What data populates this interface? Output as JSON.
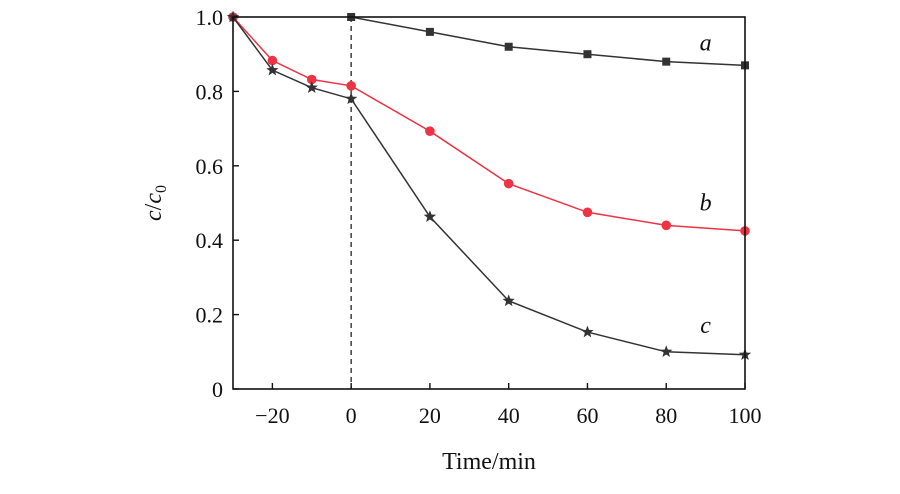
{
  "chart_data": {
    "type": "line",
    "title": "",
    "xlabel": "Time/min",
    "ylabel": {
      "c": "c",
      "slash": "/",
      "c0_base": "c",
      "c0_sub": "0"
    },
    "xlim": [
      -30,
      100
    ],
    "ylim": [
      0,
      1.0
    ],
    "x_ticks": [
      -20,
      0,
      20,
      40,
      60,
      80,
      100
    ],
    "x_tick_labels": [
      "−20",
      "0",
      "20",
      "40",
      "60",
      "80",
      "100"
    ],
    "y_ticks": [
      0,
      0.2,
      0.4,
      0.6,
      0.8,
      1.0
    ],
    "y_tick_labels": [
      "0",
      "0.2",
      "0.4",
      "0.6",
      "0.8",
      "1.0"
    ],
    "vertical_reference_line": {
      "x": 0,
      "style": "dashed"
    },
    "series": [
      {
        "name": "a",
        "marker": "square",
        "color": "#333333",
        "points": [
          {
            "x": 0,
            "y": 1.0
          },
          {
            "x": 20,
            "y": 0.96
          },
          {
            "x": 40,
            "y": 0.92
          },
          {
            "x": 60,
            "y": 0.9
          },
          {
            "x": 80,
            "y": 0.88
          },
          {
            "x": 100,
            "y": 0.87
          }
        ]
      },
      {
        "name": "b",
        "marker": "circle",
        "color": "#ee3344",
        "points": [
          {
            "x": -30,
            "y": 1.0
          },
          {
            "x": -20,
            "y": 0.883
          },
          {
            "x": -10,
            "y": 0.832
          },
          {
            "x": 0,
            "y": 0.815
          },
          {
            "x": 20,
            "y": 0.693
          },
          {
            "x": 40,
            "y": 0.552
          },
          {
            "x": 60,
            "y": 0.475
          },
          {
            "x": 80,
            "y": 0.44
          },
          {
            "x": 100,
            "y": 0.425
          }
        ]
      },
      {
        "name": "c",
        "marker": "star",
        "color": "#333333",
        "points": [
          {
            "x": -30,
            "y": 1.0
          },
          {
            "x": -20,
            "y": 0.857
          },
          {
            "x": -10,
            "y": 0.81
          },
          {
            "x": 0,
            "y": 0.78
          },
          {
            "x": 20,
            "y": 0.463
          },
          {
            "x": 40,
            "y": 0.237
          },
          {
            "x": 60,
            "y": 0.153
          },
          {
            "x": 80,
            "y": 0.1
          },
          {
            "x": 100,
            "y": 0.092
          }
        ]
      }
    ],
    "annotations": [
      {
        "text": "a",
        "series": "a",
        "x": 90,
        "y": 0.91
      },
      {
        "text": "b",
        "series": "b",
        "x": 90,
        "y": 0.48
      },
      {
        "text": "c",
        "series": "c",
        "x": 90,
        "y": 0.15
      }
    ]
  }
}
